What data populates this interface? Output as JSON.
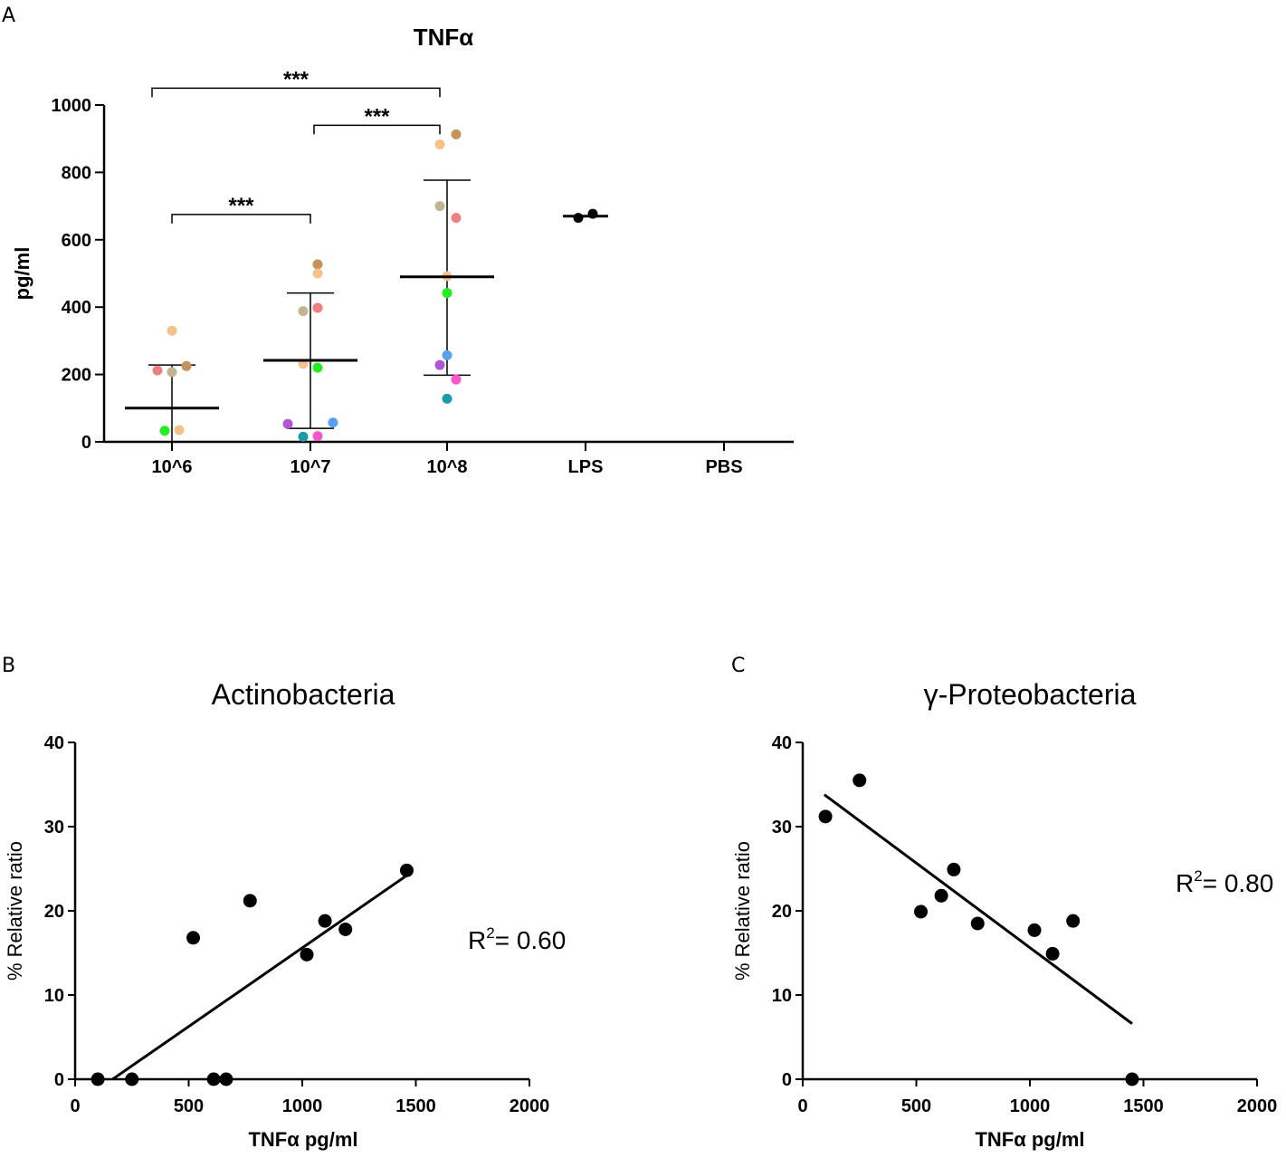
{
  "panels": {
    "a": {
      "letter": "A"
    },
    "b": {
      "letter": "B"
    },
    "c": {
      "letter": "C"
    }
  },
  "r2": {
    "b": {
      "label": "R",
      "sup": "2",
      "value": "= 0.60"
    },
    "c": {
      "label": "R",
      "sup": "2",
      "value": "= 0.80"
    }
  },
  "colors": {
    "axis": "#000000",
    "points_scatter": "#000000"
  },
  "chart_data": [
    {
      "id": "A",
      "type": "scatter",
      "subtype": "dot plot with mean and SD error bars",
      "title": "TNFα",
      "xlabel": "",
      "ylabel": "pg/ml",
      "ylim": [
        0,
        1000
      ],
      "yticks": [
        0,
        200,
        400,
        600,
        800,
        1000
      ],
      "categories": [
        "10^6",
        "10^7",
        "10^8",
        "LPS",
        "PBS"
      ],
      "groups": [
        {
          "category": "10^6",
          "mean": 100,
          "sd_low": 0,
          "sd_high": 228,
          "points": [
            {
              "value": 330,
              "color": "#f5c28a"
            },
            {
              "value": 225,
              "color": "#c8935a"
            },
            {
              "value": 212,
              "color": "#f08080"
            },
            {
              "value": 207,
              "color": "#c3b590"
            },
            {
              "value": 35,
              "color": "#f5c28a"
            },
            {
              "value": 33,
              "color": "#22ee22"
            }
          ]
        },
        {
          "category": "10^7",
          "mean": 242,
          "sd_low": 40,
          "sd_high": 442,
          "points": [
            {
              "value": 527,
              "color": "#c8935a"
            },
            {
              "value": 500,
              "color": "#f5c28a"
            },
            {
              "value": 398,
              "color": "#f08080"
            },
            {
              "value": 388,
              "color": "#c3b590"
            },
            {
              "value": 232,
              "color": "#f5c28a"
            },
            {
              "value": 220,
              "color": "#22ee22"
            },
            {
              "value": 57,
              "color": "#5aa0f0"
            },
            {
              "value": 53,
              "color": "#b057d6"
            },
            {
              "value": 17,
              "color": "#ff55cc"
            },
            {
              "value": 15,
              "color": "#1a9aaa"
            }
          ]
        },
        {
          "category": "10^8",
          "mean": 490,
          "sd_low": 198,
          "sd_high": 777,
          "points": [
            {
              "value": 913,
              "color": "#c8935a"
            },
            {
              "value": 883,
              "color": "#f5c28a"
            },
            {
              "value": 700,
              "color": "#c3b590"
            },
            {
              "value": 665,
              "color": "#f08080"
            },
            {
              "value": 492,
              "color": "#f5c28a"
            },
            {
              "value": 442,
              "color": "#22ee22"
            },
            {
              "value": 257,
              "color": "#5aa0f0"
            },
            {
              "value": 228,
              "color": "#b057d6"
            },
            {
              "value": 185,
              "color": "#ff55cc"
            },
            {
              "value": 128,
              "color": "#1a9aaa"
            }
          ]
        },
        {
          "category": "LPS",
          "mean": 670,
          "sd_low": 667,
          "sd_high": 675,
          "points": [
            {
              "value": 665,
              "color": "#000000"
            },
            {
              "value": 677,
              "color": "#000000"
            }
          ]
        },
        {
          "category": "PBS",
          "points": []
        }
      ],
      "significance": [
        {
          "from": "10^6",
          "to": "10^8",
          "level": 1050,
          "label": "***"
        },
        {
          "from": "10^7",
          "to": "10^8",
          "level": 940,
          "label": "***"
        },
        {
          "from": "10^6",
          "to": "10^7",
          "level": 675,
          "label": "***"
        }
      ]
    },
    {
      "id": "B",
      "type": "scatter",
      "title": "Actinobacteria",
      "xlabel": "TNFα pg/ml",
      "ylabel": "% Relative ratio",
      "xlim": [
        0,
        2000
      ],
      "ylim": [
        0,
        40
      ],
      "xticks": [
        0,
        500,
        1000,
        1500,
        2000
      ],
      "yticks": [
        0,
        10,
        20,
        30,
        40
      ],
      "points": [
        {
          "x": 100,
          "y": 0
        },
        {
          "x": 250,
          "y": 0
        },
        {
          "x": 610,
          "y": 0
        },
        {
          "x": 665,
          "y": 0
        },
        {
          "x": 520,
          "y": 16.8
        },
        {
          "x": 770,
          "y": 21.2
        },
        {
          "x": 1020,
          "y": 14.8
        },
        {
          "x": 1100,
          "y": 18.8
        },
        {
          "x": 1190,
          "y": 17.8
        },
        {
          "x": 1460,
          "y": 24.8
        }
      ],
      "fit_line": {
        "x": [
          165,
          1460
        ],
        "y": [
          0,
          24.2
        ]
      },
      "r_squared": 0.6
    },
    {
      "id": "C",
      "type": "scatter",
      "title": "γ-Proteobacteria",
      "xlabel": "TNFα pg/ml",
      "ylabel": "% Relative ratio",
      "xlim": [
        0,
        2000
      ],
      "ylim": [
        0,
        40
      ],
      "xticks": [
        0,
        500,
        1000,
        1500,
        2000
      ],
      "yticks": [
        0,
        10,
        20,
        30,
        40
      ],
      "points": [
        {
          "x": 100,
          "y": 31.2
        },
        {
          "x": 250,
          "y": 35.5
        },
        {
          "x": 520,
          "y": 19.9
        },
        {
          "x": 610,
          "y": 21.8
        },
        {
          "x": 665,
          "y": 24.9
        },
        {
          "x": 770,
          "y": 18.5
        },
        {
          "x": 1020,
          "y": 17.7
        },
        {
          "x": 1100,
          "y": 14.9
        },
        {
          "x": 1190,
          "y": 18.8
        },
        {
          "x": 1450,
          "y": 0
        }
      ],
      "fit_line": {
        "x": [
          95,
          1450
        ],
        "y": [
          33.8,
          6.6
        ]
      },
      "r_squared": 0.8
    }
  ]
}
